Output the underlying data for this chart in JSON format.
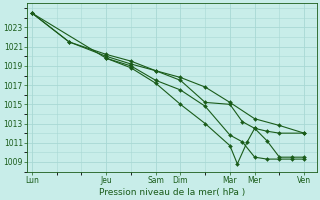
{
  "title": "Pression niveau de la mer( hPa )",
  "background_color": "#c8ede9",
  "grid_color": "#a8d8d4",
  "line_color": "#1a5c1a",
  "x_labels": [
    "Lun",
    "Jeu",
    "Sam",
    "Dim",
    "Mar",
    "Mer",
    "Ven"
  ],
  "x_ticks": [
    0,
    3,
    5,
    6,
    8,
    9,
    11
  ],
  "xlim": [
    -0.2,
    11.5
  ],
  "ylim": [
    1008.0,
    1025.5
  ],
  "yticks": [
    1009,
    1011,
    1013,
    1015,
    1017,
    1019,
    1021,
    1023
  ],
  "series": [
    {
      "x": [
        0,
        1.5,
        3,
        4,
        5,
        6,
        7,
        8,
        9,
        10,
        11
      ],
      "y": [
        1024.5,
        1021.5,
        1020.2,
        1019.5,
        1018.5,
        1017.8,
        1016.8,
        1015.2,
        1013.5,
        1012.8,
        1012.0
      ]
    },
    {
      "x": [
        0,
        1.5,
        3,
        4,
        5,
        6,
        7,
        8,
        8.5,
        9,
        9.5,
        10,
        11
      ],
      "y": [
        1024.5,
        1021.5,
        1020.0,
        1019.2,
        1018.5,
        1017.5,
        1015.2,
        1015.0,
        1013.2,
        1012.5,
        1012.2,
        1012.0,
        1012.0
      ]
    },
    {
      "x": [
        0,
        3,
        4,
        5,
        6,
        7,
        8,
        8.3,
        8.7,
        9,
        9.5,
        10,
        10.5,
        11
      ],
      "y": [
        1024.5,
        1019.8,
        1018.8,
        1017.2,
        1015.0,
        1013.0,
        1010.7,
        1008.8,
        1011.1,
        1012.5,
        1011.2,
        1009.5,
        1009.5,
        1009.5
      ]
    },
    {
      "x": [
        3,
        4,
        5,
        6,
        7,
        8,
        8.5,
        9,
        9.5,
        10,
        10.5,
        11
      ],
      "y": [
        1019.8,
        1019.0,
        1017.5,
        1016.5,
        1014.8,
        1011.8,
        1011.1,
        1009.5,
        1009.3,
        1009.3,
        1009.3,
        1009.3
      ]
    }
  ]
}
